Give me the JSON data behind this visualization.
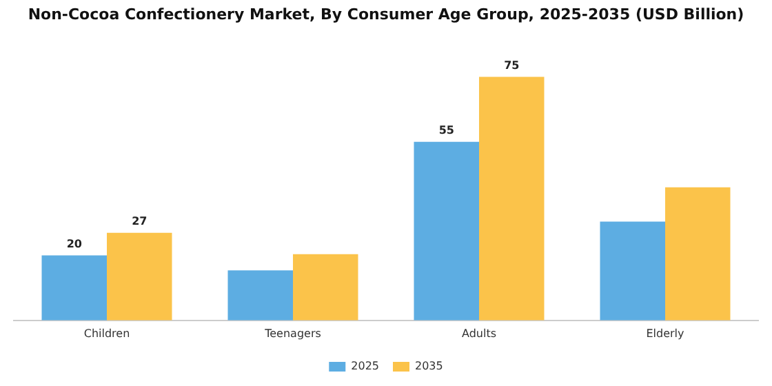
{
  "chart_data": {
    "type": "bar",
    "title": "Non-Cocoa Confectionery Market, By Consumer Age Group, 2025-2035 (USD Billion)",
    "categories": [
      "Children",
      "Teenagers",
      "Adults",
      "Elderly"
    ],
    "series": [
      {
        "name": "2025",
        "color": "#5dade2",
        "values": [
          20,
          15.4,
          55,
          30.4
        ],
        "value_labels": [
          "20",
          null,
          "55",
          null
        ]
      },
      {
        "name": "2035",
        "color": "#fbc34a",
        "values": [
          27,
          20.4,
          75,
          41
        ],
        "value_labels": [
          "27",
          null,
          "75",
          null
        ]
      }
    ],
    "tick_labels": "x",
    "grid": false,
    "legend": "bottom"
  }
}
